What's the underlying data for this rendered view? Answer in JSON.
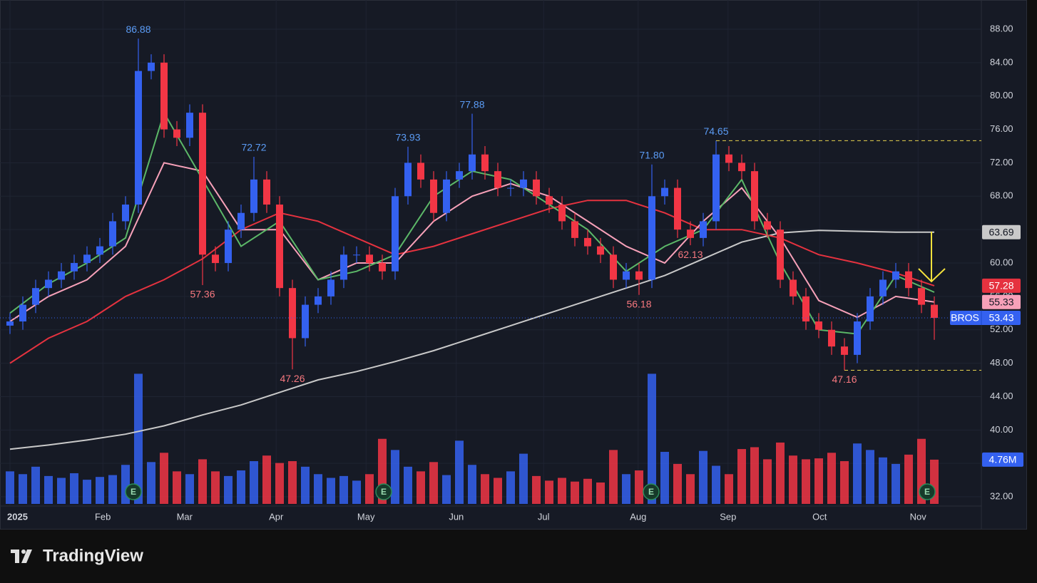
{
  "chart_data": {
    "type": "candlestick",
    "symbol": "BROS",
    "brand": "TradingView",
    "up_color": "#3461f0",
    "down_color": "#f23645",
    "xlim": [
      0,
      227
    ],
    "xticks": [
      {
        "value": 0,
        "label": "2025"
      },
      {
        "value": 21.7,
        "label": "Feb"
      },
      {
        "value": 40.8,
        "label": "Mar"
      },
      {
        "value": 62.2,
        "label": "Apr"
      },
      {
        "value": 83.2,
        "label": "May"
      },
      {
        "value": 104.3,
        "label": "Jun"
      },
      {
        "value": 124.7,
        "label": "Jul"
      },
      {
        "value": 146.8,
        "label": "Aug"
      },
      {
        "value": 167.8,
        "label": "Sep"
      },
      {
        "value": 189.2,
        "label": "Oct"
      },
      {
        "value": 212.2,
        "label": "Nov"
      }
    ],
    "ylim": [
      31.15,
      91.5
    ],
    "yticks": [
      {
        "value": 32,
        "label": "32.00"
      },
      {
        "value": 36,
        "label": "36.00"
      },
      {
        "value": 40,
        "label": "40.00"
      },
      {
        "value": 44,
        "label": "44.00"
      },
      {
        "value": 48,
        "label": "48.00"
      },
      {
        "value": 52,
        "label": "52.00"
      },
      {
        "value": 56,
        "label": "56.00"
      },
      {
        "value": 60,
        "label": "60.00"
      },
      {
        "value": 64,
        "label": "64.00"
      },
      {
        "value": 68,
        "label": "68.00"
      },
      {
        "value": 72,
        "label": "72.00"
      },
      {
        "value": 76,
        "label": "76.00"
      },
      {
        "value": 80,
        "label": "80.00"
      },
      {
        "value": 84,
        "label": "84.00"
      },
      {
        "value": 88,
        "label": "88.00"
      }
    ],
    "grid": true,
    "candles": {
      "x": [
        0,
        3,
        6,
        9,
        12,
        15,
        18,
        21,
        24,
        27,
        30,
        33,
        36,
        39,
        42,
        45,
        48,
        51,
        54,
        57,
        60,
        63,
        66,
        69,
        72,
        75,
        78,
        81,
        84,
        87,
        90,
        93,
        96,
        99,
        102,
        105,
        108,
        111,
        114,
        117,
        120,
        123,
        126,
        129,
        132,
        135,
        138,
        141,
        144,
        147,
        150,
        153,
        156,
        159,
        162,
        165,
        168,
        171,
        174,
        177,
        180,
        183,
        186,
        189,
        192,
        195,
        198,
        201,
        204,
        207,
        210,
        213,
        216
      ],
      "open": [
        52.5,
        53,
        55,
        57,
        58,
        59,
        60,
        61,
        62,
        65,
        67,
        83,
        84,
        76,
        75,
        78,
        61,
        60,
        64,
        66,
        70,
        67,
        57,
        51,
        55,
        56,
        58,
        61,
        61,
        60,
        59,
        68,
        72,
        70,
        66,
        70,
        71,
        73,
        71,
        69,
        69,
        70,
        68,
        67,
        65,
        63,
        62,
        61,
        58,
        59,
        58,
        68,
        69,
        64,
        63,
        65,
        73,
        72,
        71,
        65,
        64,
        58,
        56,
        53,
        52,
        50,
        49,
        53,
        56,
        58,
        59,
        57,
        55
      ],
      "high": [
        54,
        56,
        58,
        59,
        60,
        61,
        62,
        63,
        66,
        68,
        86.88,
        85,
        85,
        77,
        79,
        79,
        62,
        65,
        67,
        72.72,
        71,
        68,
        58,
        56,
        57,
        59,
        62,
        62,
        62,
        61,
        69,
        73.93,
        73,
        71,
        71,
        72,
        77.88,
        74,
        72,
        70,
        71,
        71,
        69,
        68,
        66,
        64,
        63,
        62,
        60,
        60,
        71.8,
        70,
        70,
        65,
        66,
        74.65,
        74,
        73,
        72,
        66,
        65,
        59,
        57,
        54,
        53,
        51,
        54,
        57,
        59,
        60,
        60,
        58,
        56
      ],
      "low": [
        51.5,
        52,
        54,
        56,
        57,
        58,
        59,
        60,
        61,
        64,
        66,
        82,
        75,
        74,
        74,
        57.36,
        59,
        59,
        63,
        65,
        66,
        56,
        47.26,
        50,
        54,
        55,
        57,
        60,
        59,
        58,
        58,
        67,
        69,
        65,
        65,
        69,
        70,
        70,
        68,
        68,
        68,
        67,
        66,
        64,
        62,
        61,
        60,
        57,
        57,
        56.18,
        57,
        67,
        63,
        62.13,
        62,
        64,
        71,
        70,
        64,
        63,
        57,
        55,
        52,
        51,
        49,
        47.16,
        48,
        52,
        55,
        57,
        56,
        54,
        50.8
      ],
      "close": [
        53,
        55,
        57,
        58,
        59,
        60,
        61,
        62,
        65,
        67,
        83,
        84,
        76,
        75,
        78,
        61,
        60,
        64,
        66,
        70,
        67,
        57,
        51,
        55,
        56,
        58,
        61,
        61,
        60,
        59,
        68,
        72,
        70,
        66,
        70,
        71,
        73,
        71,
        69,
        69,
        70,
        68,
        67,
        65,
        63,
        62,
        61,
        58,
        59,
        58,
        68,
        69,
        64,
        63,
        65,
        73,
        72,
        71,
        65,
        64,
        58,
        56,
        53,
        52,
        50,
        49,
        53,
        56,
        58,
        59,
        57,
        55,
        53.43
      ],
      "high_labels": [
        null,
        null,
        null,
        null,
        null,
        null,
        null,
        null,
        null,
        null,
        "86.88",
        null,
        null,
        null,
        null,
        null,
        null,
        null,
        null,
        "72.72",
        null,
        null,
        null,
        null,
        null,
        null,
        null,
        null,
        null,
        null,
        null,
        "73.93",
        null,
        null,
        null,
        null,
        "77.88",
        null,
        null,
        null,
        null,
        null,
        null,
        null,
        null,
        null,
        null,
        null,
        null,
        null,
        "71.80",
        null,
        null,
        null,
        null,
        "74.65",
        null,
        null,
        null,
        null,
        null,
        null,
        null,
        null,
        null,
        null,
        null,
        null,
        null,
        null,
        null,
        null,
        null
      ],
      "low_labels": [
        null,
        null,
        null,
        null,
        null,
        null,
        null,
        null,
        null,
        null,
        null,
        null,
        null,
        null,
        null,
        "57.36",
        null,
        null,
        null,
        null,
        null,
        null,
        "47.26",
        null,
        null,
        null,
        null,
        null,
        null,
        null,
        null,
        null,
        null,
        null,
        null,
        null,
        null,
        null,
        null,
        null,
        null,
        null,
        null,
        null,
        null,
        null,
        null,
        null,
        null,
        "56.18",
        null,
        null,
        null,
        "62.13",
        null,
        null,
        null,
        null,
        null,
        null,
        null,
        null,
        null,
        null,
        null,
        "47.16",
        null,
        null,
        null,
        null,
        null,
        null,
        null
      ]
    },
    "volume": {
      "values": [
        3.5,
        3.2,
        4,
        3,
        2.8,
        3.3,
        2.6,
        2.9,
        3.1,
        4.2,
        14,
        4.5,
        5.5,
        3.5,
        3.2,
        4.8,
        3.5,
        3,
        3.6,
        4.6,
        5.2,
        4.4,
        4.6,
        4,
        3.2,
        2.8,
        3,
        2.5,
        3.2,
        7,
        5.8,
        4,
        3.5,
        4.5,
        3.1,
        6.8,
        4.2,
        3.2,
        2.8,
        3.5,
        5.4,
        3,
        2.5,
        2.8,
        2.4,
        2.7,
        2.3,
        5.8,
        3.2,
        3.6,
        14,
        5.6,
        4.3,
        3.2,
        5.7,
        4.1,
        3.2,
        5.9,
        6.1,
        4.8,
        6.6,
        5.2,
        4.8,
        4.9,
        5.5,
        4.6,
        6.5,
        5.8,
        5,
        4.3,
        5.3,
        7,
        4.76
      ],
      "ylim": [
        0,
        25
      ],
      "last_label": "4.76M"
    },
    "earnings_markers": [
      "E",
      "E",
      "E",
      "E"
    ],
    "moving_averages": [
      {
        "color": "#c9c9c9",
        "x": [
          0,
          9,
          18,
          27,
          36,
          45,
          54,
          63,
          72,
          81,
          90,
          99,
          108,
          117,
          126,
          135,
          144,
          153,
          162,
          171,
          180,
          189,
          198,
          207,
          216
        ],
        "values": [
          37.7,
          38.2,
          38.8,
          39.5,
          40.5,
          41.8,
          43,
          44.5,
          46,
          47,
          48.2,
          49.5,
          51,
          52.5,
          54,
          55.5,
          57,
          58.5,
          60.5,
          62.5,
          63.6,
          63.9,
          63.8,
          63.7,
          63.69
        ]
      },
      {
        "color": "#e5323f",
        "x": [
          0,
          9,
          18,
          27,
          36,
          45,
          54,
          63,
          72,
          81,
          90,
          99,
          108,
          117,
          126,
          135,
          144,
          153,
          162,
          171,
          180,
          189,
          198,
          207,
          216
        ],
        "values": [
          48,
          51,
          53,
          56,
          58,
          60.5,
          64,
          66,
          65,
          63,
          61,
          62,
          63.5,
          65,
          66.5,
          67.5,
          67.5,
          66,
          64,
          64,
          63,
          61,
          60,
          58.8,
          57.28
        ]
      },
      {
        "color": "#f7a1b9",
        "x": [
          0,
          9,
          18,
          27,
          36,
          45,
          54,
          63,
          72,
          81,
          90,
          99,
          108,
          117,
          126,
          135,
          144,
          153,
          162,
          171,
          180,
          189,
          198,
          207,
          216
        ],
        "values": [
          53,
          56,
          58,
          62,
          72,
          71,
          64,
          64,
          58,
          60,
          60,
          65,
          68,
          69.5,
          68,
          65,
          62,
          60,
          65,
          69,
          63,
          55.5,
          53.5,
          56,
          55.33
        ]
      },
      {
        "color": "#5cb868",
        "x": [
          0,
          9,
          18,
          27,
          36,
          45,
          54,
          63,
          72,
          81,
          90,
          99,
          108,
          117,
          126,
          135,
          144,
          153,
          162,
          171,
          180,
          189,
          198,
          207,
          216
        ],
        "values": [
          54,
          57.5,
          60,
          63,
          78,
          70,
          62,
          65,
          58,
          59,
          61,
          68,
          71,
          70,
          67,
          64,
          59,
          62,
          64,
          70,
          60,
          52,
          51.5,
          58.5,
          56.5
        ]
      }
    ]
  }
}
